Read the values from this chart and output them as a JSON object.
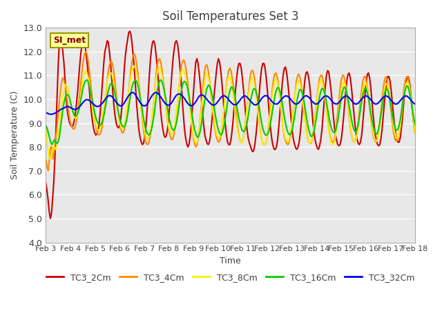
{
  "title": "Soil Temperatures Set 3",
  "xlabel": "Time",
  "ylabel": "Soil Temperature (C)",
  "ylim": [
    4.0,
    13.0
  ],
  "yticks": [
    4.0,
    5.0,
    6.0,
    7.0,
    8.0,
    9.0,
    10.0,
    11.0,
    12.0,
    13.0
  ],
  "xtick_labels": [
    "Feb 3",
    "Feb 4",
    "Feb 5",
    "Feb 6",
    "Feb 7",
    "Feb 8",
    "Feb 9",
    "Feb 10",
    "Feb 11",
    "Feb 12",
    "Feb 13",
    "Feb 14",
    "Feb 15",
    "Feb 16",
    "Feb 17",
    "Feb 18"
  ],
  "legend_label": "SI_met",
  "series_labels": [
    "TC3_2Cm",
    "TC3_4Cm",
    "TC3_8Cm",
    "TC3_16Cm",
    "TC3_32Cm"
  ],
  "series_colors": [
    "#cc0000",
    "#ff8800",
    "#ffee00",
    "#00cc00",
    "#0000ff"
  ],
  "background_color": "#ffffff",
  "plot_bg_color": "#e8e8e8",
  "grid_color": "#ffffff",
  "title_color": "#404040",
  "label_color": "#404040",
  "annotation_bg": "#ffff99",
  "annotation_border": "#999900",
  "annotation_text_color": "#800000",
  "days": 15,
  "TC3_2Cm": [
    6.5,
    6.2,
    5.8,
    5.3,
    5.0,
    5.2,
    5.8,
    6.5,
    7.5,
    8.8,
    10.2,
    11.5,
    12.4,
    12.5,
    12.4,
    12.0,
    11.5,
    10.8,
    10.0,
    9.5,
    9.2,
    9.0,
    8.9,
    8.85,
    8.9,
    9.1,
    9.4,
    9.8,
    10.3,
    10.9,
    11.5,
    12.0,
    12.3,
    12.5,
    12.4,
    12.1,
    11.7,
    11.2,
    10.6,
    10.0,
    9.5,
    9.1,
    8.8,
    8.6,
    8.5,
    8.55,
    8.7,
    9.0,
    9.5,
    10.1,
    10.8,
    11.5,
    12.0,
    12.2,
    12.45,
    12.4,
    12.0,
    11.5,
    10.9,
    10.3,
    9.7,
    9.3,
    9.0,
    8.85,
    8.8,
    8.9,
    9.2,
    9.7,
    10.4,
    11.2,
    11.8,
    12.2,
    12.5,
    12.8,
    12.85,
    12.7,
    12.3,
    11.8,
    11.2,
    10.5,
    9.8,
    9.2,
    8.7,
    8.4,
    8.2,
    8.1,
    8.15,
    8.4,
    8.8,
    9.4,
    10.1,
    10.9,
    11.6,
    12.1,
    12.4,
    12.45,
    12.3,
    11.9,
    11.4,
    10.8,
    10.2,
    9.6,
    9.1,
    8.75,
    8.5,
    8.4,
    8.45,
    8.7,
    9.1,
    9.7,
    10.4,
    11.1,
    11.7,
    12.1,
    12.4,
    12.45,
    12.3,
    11.9,
    11.4,
    10.8,
    10.1,
    9.4,
    8.8,
    8.4,
    8.15,
    8.0,
    8.1,
    8.4,
    8.9,
    9.6,
    10.3,
    11.0,
    11.55,
    11.7,
    11.5,
    11.1,
    10.6,
    10.0,
    9.4,
    8.9,
    8.5,
    8.3,
    8.15,
    8.1,
    8.2,
    8.5,
    9.0,
    9.5,
    10.1,
    10.6,
    11.1,
    11.5,
    11.7,
    11.55,
    11.2,
    10.7,
    10.1,
    9.5,
    8.95,
    8.5,
    8.2,
    8.1,
    8.1,
    8.3,
    8.7,
    9.2,
    9.8,
    10.4,
    10.9,
    11.3,
    11.5,
    11.5,
    11.3,
    10.9,
    10.4,
    9.9,
    9.3,
    8.8,
    8.4,
    8.2,
    8.05,
    7.9,
    7.8,
    7.85,
    8.1,
    8.5,
    9.0,
    9.7,
    10.3,
    10.9,
    11.3,
    11.5,
    11.5,
    11.3,
    10.9,
    10.4,
    9.8,
    9.2,
    8.7,
    8.3,
    8.05,
    7.9,
    7.9,
    8.0,
    8.3,
    8.8,
    9.4,
    10.0,
    10.6,
    11.05,
    11.3,
    11.35,
    11.1,
    10.7,
    10.2,
    9.7,
    9.15,
    8.65,
    8.3,
    8.1,
    7.95,
    7.9,
    8.0,
    8.2,
    8.6,
    9.1,
    9.7,
    10.3,
    10.8,
    11.1,
    11.15,
    11.0,
    10.7,
    10.2,
    9.7,
    9.1,
    8.65,
    8.3,
    8.1,
    7.95,
    7.9,
    8.05,
    8.3,
    8.7,
    9.3,
    9.9,
    10.5,
    11.0,
    11.2,
    11.15,
    10.8,
    10.4,
    9.9,
    9.35,
    8.85,
    8.5,
    8.25,
    8.1,
    8.05,
    8.1,
    8.3,
    8.7,
    9.2,
    9.8,
    10.35,
    10.8,
    11.05,
    11.1,
    10.9,
    10.5,
    10.0,
    9.5,
    9.0,
    8.6,
    8.3,
    8.15,
    8.1,
    8.2,
    8.5,
    9.0,
    9.6,
    10.2,
    10.7,
    11.05,
    11.1,
    10.9,
    10.5,
    9.95,
    9.4,
    8.9,
    8.5,
    8.25,
    8.1,
    8.05,
    8.1,
    8.35,
    8.75,
    9.3,
    9.85,
    10.35,
    10.75,
    10.95,
    10.95,
    10.75,
    10.35,
    9.85,
    9.35,
    8.9,
    8.5,
    8.3,
    8.2,
    8.2,
    8.4,
    8.8,
    9.3,
    9.85,
    10.35,
    10.75,
    10.95,
    10.95,
    10.75,
    10.35,
    9.85,
    9.35,
    8.9,
    8.6
  ],
  "TC3_4Cm": [
    7.5,
    7.2,
    7.0,
    7.5,
    8.0,
    8.0,
    7.5,
    7.8,
    8.3,
    8.7,
    9.2,
    9.8,
    10.3,
    10.7,
    10.9,
    10.8,
    10.6,
    10.2,
    9.8,
    9.4,
    9.1,
    8.9,
    8.8,
    8.75,
    8.8,
    9.0,
    9.3,
    9.7,
    10.2,
    10.7,
    11.2,
    11.6,
    11.9,
    12.0,
    11.9,
    11.6,
    11.2,
    10.7,
    10.2,
    9.7,
    9.3,
    8.95,
    8.7,
    8.55,
    8.5,
    8.55,
    8.7,
    9.0,
    9.4,
    9.9,
    10.4,
    10.9,
    11.3,
    11.5,
    11.6,
    11.5,
    11.2,
    10.8,
    10.3,
    9.8,
    9.3,
    9.0,
    8.75,
    8.6,
    8.6,
    8.75,
    9.0,
    9.4,
    10.0,
    10.6,
    11.1,
    11.5,
    11.8,
    11.9,
    11.8,
    11.5,
    11.1,
    10.6,
    10.1,
    9.5,
    9.0,
    8.6,
    8.3,
    8.15,
    8.1,
    8.15,
    8.4,
    8.75,
    9.2,
    9.8,
    10.4,
    11.0,
    11.4,
    11.65,
    11.7,
    11.55,
    11.2,
    10.8,
    10.3,
    9.8,
    9.3,
    8.9,
    8.6,
    8.4,
    8.3,
    8.35,
    8.55,
    8.9,
    9.35,
    9.9,
    10.5,
    11.0,
    11.4,
    11.6,
    11.65,
    11.5,
    11.2,
    10.8,
    10.3,
    9.8,
    9.25,
    8.75,
    8.35,
    8.1,
    8.0,
    8.1,
    8.4,
    8.85,
    9.4,
    10.0,
    10.6,
    11.1,
    11.4,
    11.45,
    11.25,
    10.9,
    10.45,
    9.95,
    9.45,
    9.0,
    8.65,
    8.4,
    8.25,
    8.2,
    8.3,
    8.55,
    9.0,
    9.5,
    10.0,
    10.5,
    10.9,
    11.2,
    11.3,
    11.2,
    10.9,
    10.5,
    10.0,
    9.5,
    9.0,
    8.6,
    8.35,
    8.2,
    8.2,
    8.35,
    8.65,
    9.1,
    9.6,
    10.1,
    10.6,
    11.0,
    11.2,
    11.2,
    11.0,
    10.65,
    10.2,
    9.7,
    9.2,
    8.75,
    8.4,
    8.2,
    8.1,
    8.1,
    8.2,
    8.45,
    8.85,
    9.35,
    9.85,
    10.35,
    10.8,
    11.05,
    11.1,
    10.95,
    10.65,
    10.25,
    9.75,
    9.25,
    8.8,
    8.45,
    8.25,
    8.15,
    8.1,
    8.2,
    8.45,
    8.8,
    9.3,
    9.8,
    10.3,
    10.75,
    11.0,
    11.05,
    10.9,
    10.6,
    10.2,
    9.7,
    9.2,
    8.8,
    8.45,
    8.25,
    8.15,
    8.15,
    8.3,
    8.6,
    9.05,
    9.55,
    10.05,
    10.5,
    10.85,
    11.0,
    11.0,
    10.8,
    10.45,
    10.05,
    9.55,
    9.1,
    8.7,
    8.4,
    8.25,
    8.2,
    8.25,
    8.5,
    8.9,
    9.4,
    9.9,
    10.4,
    10.8,
    11.0,
    11.0,
    10.8,
    10.45,
    10.0,
    9.5,
    9.05,
    8.65,
    8.4,
    8.25,
    8.2,
    8.3,
    8.55,
    9.0,
    9.5,
    10.0,
    10.45,
    10.8,
    10.95,
    10.95,
    10.7,
    10.35,
    9.9,
    9.4,
    8.95,
    8.6,
    8.35,
    8.25,
    8.2,
    8.35,
    8.65,
    9.1,
    9.6,
    10.1,
    10.55,
    10.85,
    10.95,
    10.8,
    10.5,
    10.1,
    9.6,
    9.1,
    8.7,
    8.4,
    8.25,
    8.25,
    8.35,
    8.65,
    9.1,
    9.55,
    10.05,
    10.5,
    10.8,
    10.95,
    10.95,
    10.7,
    10.35,
    9.9,
    9.45,
    9.0,
    8.6
  ],
  "TC3_8Cm": [
    8.8,
    8.3,
    7.8,
    7.5,
    7.5,
    7.7,
    8.0,
    8.0,
    7.9,
    8.0,
    8.3,
    8.7,
    9.2,
    9.7,
    10.1,
    10.4,
    10.6,
    10.6,
    10.5,
    10.3,
    10.0,
    9.7,
    9.5,
    9.3,
    9.2,
    9.2,
    9.3,
    9.5,
    9.8,
    10.2,
    10.6,
    10.9,
    11.1,
    11.2,
    11.1,
    10.9,
    10.6,
    10.3,
    9.9,
    9.5,
    9.2,
    9.0,
    8.8,
    8.7,
    8.7,
    8.8,
    9.0,
    9.3,
    9.7,
    10.1,
    10.5,
    10.8,
    11.0,
    11.1,
    11.1,
    11.0,
    10.7,
    10.4,
    10.0,
    9.6,
    9.3,
    9.0,
    8.85,
    8.75,
    8.8,
    8.95,
    9.2,
    9.6,
    10.0,
    10.5,
    10.9,
    11.15,
    11.3,
    11.4,
    11.3,
    11.1,
    10.8,
    10.4,
    10.0,
    9.5,
    9.1,
    8.8,
    8.55,
    8.4,
    8.35,
    8.4,
    8.6,
    8.9,
    9.3,
    9.8,
    10.3,
    10.8,
    11.1,
    11.3,
    11.35,
    11.2,
    11.0,
    10.6,
    10.2,
    9.75,
    9.35,
    9.0,
    8.75,
    8.6,
    8.55,
    8.6,
    8.8,
    9.1,
    9.5,
    10.0,
    10.5,
    10.9,
    11.15,
    11.25,
    11.2,
    11.1,
    10.8,
    10.5,
    10.0,
    9.6,
    9.15,
    8.75,
    8.45,
    8.25,
    8.15,
    8.2,
    8.45,
    8.8,
    9.25,
    9.75,
    10.25,
    10.7,
    10.95,
    11.05,
    10.95,
    10.75,
    10.45,
    10.05,
    9.6,
    9.2,
    8.8,
    8.55,
    8.4,
    8.35,
    8.45,
    8.7,
    9.05,
    9.5,
    9.95,
    10.4,
    10.75,
    10.95,
    10.95,
    10.8,
    10.5,
    10.1,
    9.65,
    9.2,
    8.8,
    8.5,
    8.3,
    8.2,
    8.2,
    8.35,
    8.65,
    9.05,
    9.5,
    9.95,
    10.4,
    10.75,
    10.9,
    10.9,
    10.7,
    10.4,
    9.95,
    9.5,
    9.05,
    8.65,
    8.4,
    8.2,
    8.1,
    8.1,
    8.2,
    8.45,
    8.8,
    9.25,
    9.7,
    10.15,
    10.5,
    10.75,
    10.85,
    10.75,
    10.5,
    10.15,
    9.7,
    9.25,
    8.85,
    8.55,
    8.35,
    8.25,
    8.2,
    8.3,
    8.55,
    8.9,
    9.35,
    9.8,
    10.2,
    10.55,
    10.75,
    10.8,
    10.65,
    10.4,
    10.0,
    9.55,
    9.1,
    8.7,
    8.4,
    8.25,
    8.15,
    8.2,
    8.35,
    8.65,
    9.05,
    9.5,
    9.95,
    10.35,
    10.65,
    10.8,
    10.75,
    10.55,
    10.25,
    9.85,
    9.4,
    8.95,
    8.6,
    8.3,
    8.15,
    8.1,
    8.15,
    8.35,
    8.7,
    9.1,
    9.55,
    10.0,
    10.4,
    10.65,
    10.75,
    10.65,
    10.4,
    10.05,
    9.6,
    9.15,
    8.75,
    8.45,
    8.3,
    8.2,
    8.25,
    8.45,
    8.8,
    9.25,
    9.7,
    10.1,
    10.45,
    10.65,
    10.7,
    10.55,
    10.3,
    9.95,
    9.5,
    9.1,
    8.7,
    8.45,
    8.3,
    8.25,
    8.3,
    8.55,
    8.9,
    9.35,
    9.8,
    10.2,
    10.5,
    10.65,
    10.65,
    10.5,
    10.2,
    9.8,
    9.35,
    8.95,
    8.65,
    8.45,
    8.35,
    8.4,
    8.6,
    8.95,
    9.4,
    9.85,
    10.25,
    10.55,
    10.7,
    10.7,
    10.55,
    10.25,
    9.85,
    9.4,
    8.95,
    8.6
  ],
  "TC3_16Cm": [
    8.9,
    8.8,
    8.6,
    8.4,
    8.2,
    8.1,
    8.2,
    8.3,
    8.2,
    8.15,
    8.2,
    8.4,
    8.8,
    9.2,
    9.6,
    9.9,
    10.1,
    10.2,
    10.2,
    10.1,
    9.9,
    9.7,
    9.5,
    9.35,
    9.3,
    9.3,
    9.4,
    9.55,
    9.8,
    10.1,
    10.4,
    10.6,
    10.75,
    10.8,
    10.8,
    10.65,
    10.45,
    10.2,
    9.95,
    9.65,
    9.4,
    9.2,
    9.05,
    8.95,
    8.9,
    8.95,
    9.05,
    9.25,
    9.5,
    9.8,
    10.1,
    10.35,
    10.55,
    10.65,
    10.65,
    10.55,
    10.35,
    10.1,
    9.8,
    9.5,
    9.25,
    9.05,
    8.9,
    8.85,
    8.85,
    8.95,
    9.15,
    9.45,
    9.8,
    10.15,
    10.45,
    10.65,
    10.75,
    10.8,
    10.75,
    10.6,
    10.35,
    10.05,
    9.75,
    9.4,
    9.1,
    8.85,
    8.65,
    8.55,
    8.5,
    8.55,
    8.7,
    8.95,
    9.25,
    9.65,
    10.05,
    10.4,
    10.65,
    10.8,
    10.8,
    10.7,
    10.5,
    10.25,
    9.95,
    9.65,
    9.35,
    9.1,
    8.9,
    8.75,
    8.7,
    8.75,
    8.9,
    9.15,
    9.5,
    9.85,
    10.2,
    10.5,
    10.7,
    10.75,
    10.7,
    10.6,
    10.35,
    10.05,
    9.75,
    9.4,
    9.1,
    8.8,
    8.6,
    8.45,
    8.4,
    8.5,
    8.7,
    9.0,
    9.35,
    9.75,
    10.1,
    10.4,
    10.55,
    10.6,
    10.5,
    10.3,
    10.05,
    9.75,
    9.4,
    9.1,
    8.85,
    8.65,
    8.55,
    8.5,
    8.6,
    8.8,
    9.1,
    9.45,
    9.8,
    10.1,
    10.35,
    10.5,
    10.5,
    10.4,
    10.2,
    9.9,
    9.6,
    9.3,
    9.05,
    8.85,
    8.7,
    8.65,
    8.65,
    8.8,
    9.0,
    9.3,
    9.65,
    9.95,
    10.2,
    10.4,
    10.45,
    10.4,
    10.2,
    9.95,
    9.65,
    9.3,
    9.0,
    8.75,
    8.6,
    8.5,
    8.5,
    8.55,
    8.7,
    8.95,
    9.25,
    9.6,
    9.9,
    10.2,
    10.4,
    10.5,
    10.45,
    10.3,
    10.05,
    9.75,
    9.4,
    9.1,
    8.85,
    8.65,
    8.55,
    8.5,
    8.6,
    8.75,
    9.05,
    9.35,
    9.7,
    10.0,
    10.25,
    10.4,
    10.4,
    10.3,
    10.05,
    9.75,
    9.4,
    9.1,
    8.8,
    8.6,
    8.45,
    8.45,
    8.55,
    8.75,
    9.05,
    9.4,
    9.75,
    10.05,
    10.3,
    10.45,
    10.45,
    10.3,
    10.1,
    9.8,
    9.5,
    9.2,
    8.95,
    8.75,
    8.65,
    8.6,
    8.65,
    8.85,
    9.1,
    9.45,
    9.8,
    10.1,
    10.35,
    10.5,
    10.5,
    10.35,
    10.1,
    9.8,
    9.5,
    9.2,
    8.95,
    8.75,
    8.65,
    8.65,
    8.8,
    9.05,
    9.4,
    9.75,
    10.05,
    10.3,
    10.45,
    10.45,
    10.3,
    10.05,
    9.75,
    9.4,
    9.1,
    8.85,
    8.65,
    8.55,
    8.55,
    8.7,
    8.95,
    9.3,
    9.65,
    9.95,
    10.2,
    10.4,
    10.45,
    10.35,
    10.1,
    9.8,
    9.5,
    9.2,
    8.95,
    8.75,
    8.7,
    8.75,
    8.9,
    9.15,
    9.5,
    9.85,
    10.15,
    10.4,
    10.55,
    10.55,
    10.4,
    10.15,
    9.85,
    9.5,
    9.2,
    8.95
  ],
  "TC3_32Cm": [
    9.45,
    9.42,
    9.4,
    9.38,
    9.37,
    9.37,
    9.38,
    9.4,
    9.42,
    9.45,
    9.48,
    9.5,
    9.55,
    9.58,
    9.6,
    9.62,
    9.65,
    9.67,
    9.7,
    9.7,
    9.68,
    9.65,
    9.62,
    9.6,
    9.58,
    9.57,
    9.58,
    9.6,
    9.65,
    9.7,
    9.75,
    9.82,
    9.88,
    9.93,
    9.97,
    9.98,
    9.98,
    9.95,
    9.92,
    9.87,
    9.82,
    9.78,
    9.74,
    9.7,
    9.7,
    9.7,
    9.73,
    9.78,
    9.82,
    9.88,
    9.95,
    10.02,
    10.08,
    10.13,
    10.15,
    10.15,
    10.13,
    10.08,
    10.02,
    9.95,
    9.88,
    9.82,
    9.77,
    9.73,
    9.72,
    9.73,
    9.78,
    9.85,
    9.93,
    10.02,
    10.1,
    10.17,
    10.22,
    10.27,
    10.28,
    10.27,
    10.22,
    10.15,
    10.07,
    9.98,
    9.9,
    9.83,
    9.77,
    9.73,
    9.72,
    9.73,
    9.77,
    9.83,
    9.92,
    10.02,
    10.1,
    10.18,
    10.23,
    10.27,
    10.28,
    10.27,
    10.23,
    10.17,
    10.1,
    10.02,
    9.95,
    9.88,
    9.82,
    9.77,
    9.75,
    9.75,
    9.78,
    9.83,
    9.9,
    9.98,
    10.07,
    10.14,
    10.19,
    10.22,
    10.22,
    10.2,
    10.17,
    10.11,
    10.05,
    9.98,
    9.9,
    9.83,
    9.78,
    9.74,
    9.73,
    9.74,
    9.77,
    9.83,
    9.9,
    9.98,
    10.07,
    10.13,
    10.17,
    10.18,
    10.17,
    10.13,
    10.08,
    10.02,
    9.96,
    9.9,
    9.85,
    9.8,
    9.77,
    9.75,
    9.76,
    9.8,
    9.85,
    9.92,
    9.98,
    10.05,
    10.1,
    10.14,
    10.15,
    10.13,
    10.1,
    10.05,
    9.98,
    9.92,
    9.87,
    9.82,
    9.78,
    9.77,
    9.77,
    9.8,
    9.85,
    9.92,
    9.98,
    10.05,
    10.1,
    10.13,
    10.14,
    10.12,
    10.07,
    10.02,
    9.96,
    9.9,
    9.85,
    9.8,
    9.77,
    9.76,
    9.78,
    9.82,
    9.88,
    9.95,
    10.02,
    10.08,
    10.12,
    10.15,
    10.15,
    10.13,
    10.08,
    10.02,
    9.96,
    9.9,
    9.85,
    9.82,
    9.8,
    9.8,
    9.82,
    9.87,
    9.93,
    9.99,
    10.05,
    10.1,
    10.13,
    10.14,
    10.13,
    10.1,
    10.05,
    9.99,
    9.93,
    9.87,
    9.83,
    9.8,
    9.8,
    9.82,
    9.86,
    9.92,
    9.98,
    10.05,
    10.1,
    10.13,
    10.15,
    10.13,
    10.1,
    10.05,
    9.98,
    9.92,
    9.87,
    9.83,
    9.8,
    9.8,
    9.82,
    9.87,
    9.93,
    9.99,
    10.05,
    10.1,
    10.13,
    10.14,
    10.13,
    10.1,
    10.05,
    9.99,
    9.93,
    9.87,
    9.83,
    9.81,
    9.8,
    9.82,
    9.86,
    9.92,
    9.98,
    10.04,
    10.09,
    10.12,
    10.14,
    10.13,
    10.1,
    10.05,
    9.99,
    9.93,
    9.87,
    9.83,
    9.8,
    9.8,
    9.82,
    9.86,
    9.92,
    9.98,
    10.04,
    10.09,
    10.12,
    10.14,
    10.13,
    10.1,
    10.05,
    9.99,
    9.93,
    9.87,
    9.83,
    9.8,
    9.8,
    9.82,
    9.86,
    9.92,
    9.98,
    10.04,
    10.09,
    10.12,
    10.14,
    10.13,
    10.1,
    10.05,
    9.99,
    9.93,
    9.87,
    9.83,
    9.8,
    9.8,
    9.82,
    9.86,
    9.92,
    9.98,
    10.04,
    10.09,
    10.12,
    10.14,
    10.13,
    10.1,
    10.05,
    9.99,
    9.93,
    9.87,
    9.83,
    9.8
  ]
}
